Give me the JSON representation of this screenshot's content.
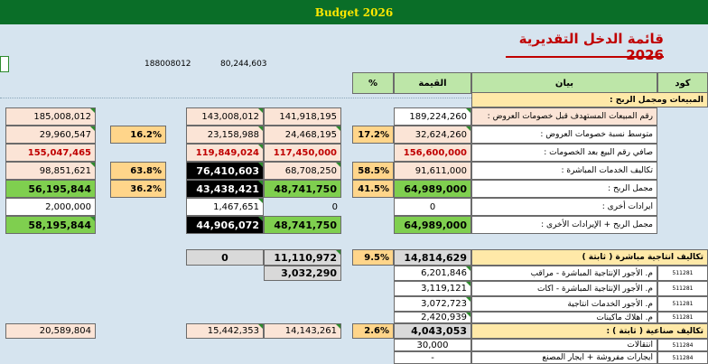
{
  "app": {
    "title": "Budget 2026"
  },
  "page_title": "قائمة الدخل التقديرية 2026",
  "top_values": {
    "a": "188008012",
    "b": "80,244,603"
  },
  "headers": {
    "code": "كود",
    "desc": "بيان",
    "value": "القيمة",
    "pct": "%"
  },
  "section1": {
    "title": "المبيعات ومجمل الربح :"
  },
  "rows": [
    {
      "label": "رقم المبيعات المستهدف قبل خصومات العروض :",
      "value": "189,224,260",
      "pct": "",
      "c1": "141,918,195",
      "c2": "143,008,012",
      "c3": "",
      "c4": "185,008,012"
    },
    {
      "label": "متوسط نسبة خصومات العروض :",
      "value": "32,624,260",
      "pct": "17.2%",
      "c1": "24,468,195",
      "c2": "23,158,988",
      "c3": "16.2%",
      "c4": "29,960,547"
    },
    {
      "label": "صافي رقم البيع بعد الخصومات :",
      "value": "156,600,000",
      "pct": "",
      "c1": "117,450,000",
      "c2": "119,849,024",
      "c3": "",
      "c4": "155,047,465"
    },
    {
      "label": "تكاليف الخدمات المباشرة :",
      "value": "91,611,000",
      "pct": "58.5%",
      "c1": "68,708,250",
      "c2": "76,410,603",
      "c3": "63.8%",
      "c4": "98,851,621"
    },
    {
      "label": "مجمل الربح :",
      "value": "64,989,000",
      "pct": "41.5%",
      "c1": "48,741,750",
      "c2": "43,438,421",
      "c3": "36.2%",
      "c4": "56,195,844"
    },
    {
      "label": "ايرادات أخرى :",
      "value": "0",
      "pct": "",
      "c1": "0",
      "c2": "1,467,651",
      "c3": "",
      "c4": "2,000,000"
    },
    {
      "label": "مجمل الربح + الإيرادات الأخرى :",
      "value": "64,989,000",
      "pct": "",
      "c1": "48,741,750",
      "c2": "44,906,072",
      "c3": "",
      "c4": "58,195,844"
    }
  ],
  "section2": {
    "title": "تكاليف انتاجية مباشرة ( ثابتة )",
    "value": "14,814,629",
    "pct": "9.5%",
    "c1": "11,110,972",
    "c2": "0",
    "c1b": "3,032,290",
    "items": [
      {
        "code": "511281",
        "label": "م. الأجور الإنتاجية المباشرة - مراقب",
        "value": "6,201,846"
      },
      {
        "code": "511281",
        "label": "م. الأجور الإنتاجية المباشرة - اكات",
        "value": "3,119,121"
      },
      {
        "code": "511281",
        "label": "م. الأجور الخدمات انتاجية",
        "value": "3,072,723"
      },
      {
        "code": "511281",
        "label": "م. اهلاك ماكينات",
        "value": "2,420,939"
      }
    ]
  },
  "section3": {
    "title": "تكاليف صناعية ( ثابتة ) :",
    "value": "4,043,053",
    "pct": "2.6%",
    "c1": "14,143,261",
    "c2": "15,442,353",
    "c4": "20,589,804",
    "items": [
      {
        "code": "511284",
        "label": "انتقالات",
        "value": "30,000"
      },
      {
        "code": "511284",
        "label": "ايجارات مفروشة + ايجار المصنع",
        "value": "-"
      }
    ]
  },
  "colors": {
    "title_bg": "#0a6e28",
    "title_fg": "#ffe800",
    "green": "#7fcf4f",
    "pink": "#fbe4d6",
    "yellow": "#ffd58a",
    "header": "#bde6a8"
  }
}
